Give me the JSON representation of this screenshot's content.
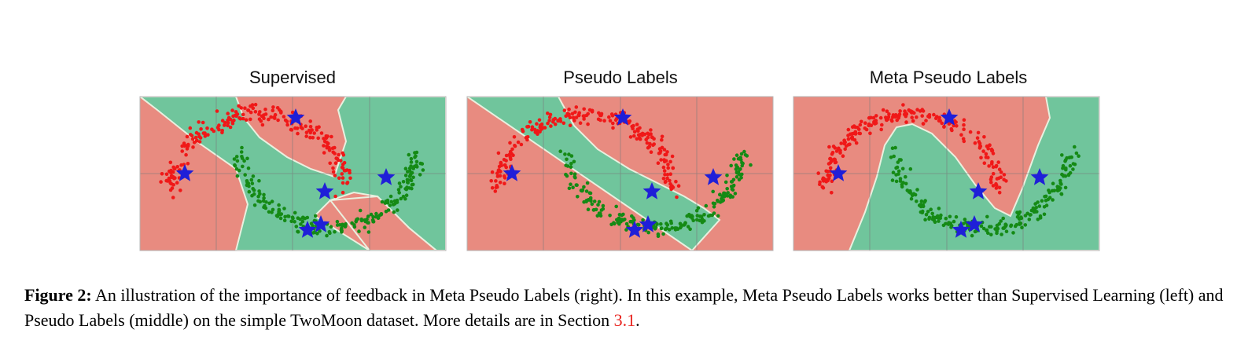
{
  "figure": {
    "caption_label": "Figure 2:",
    "caption_text_1": " An illustration of the importance of feedback in Meta Pseudo Labels (right). In this example, Meta Pseudo Labels works better than Supervised Learning (left) and Pseudo Labels (middle) on the simple TwoMoon dataset. More details are in Section ",
    "caption_ref": "3.1",
    "caption_text_2": "."
  },
  "colors": {
    "region_red": "#e88b80",
    "region_green": "#70c59c",
    "boundary": "#e9f0df",
    "points_red": "#f01818",
    "points_green": "#158a15",
    "stars": "#1f1fd8",
    "grid": "#7a7a7a"
  },
  "chart_data": [
    {
      "type": "scatter",
      "title": "Supervised",
      "series": [],
      "labeled_points": "blue-star",
      "grid": true
    },
    {
      "type": "scatter",
      "title": "Pseudo Labels",
      "series": [],
      "labeled_points": "blue-star",
      "grid": true
    },
    {
      "type": "scatter",
      "title": "Meta Pseudo Labels",
      "series": [],
      "labeled_points": "blue-star",
      "grid": true
    }
  ]
}
